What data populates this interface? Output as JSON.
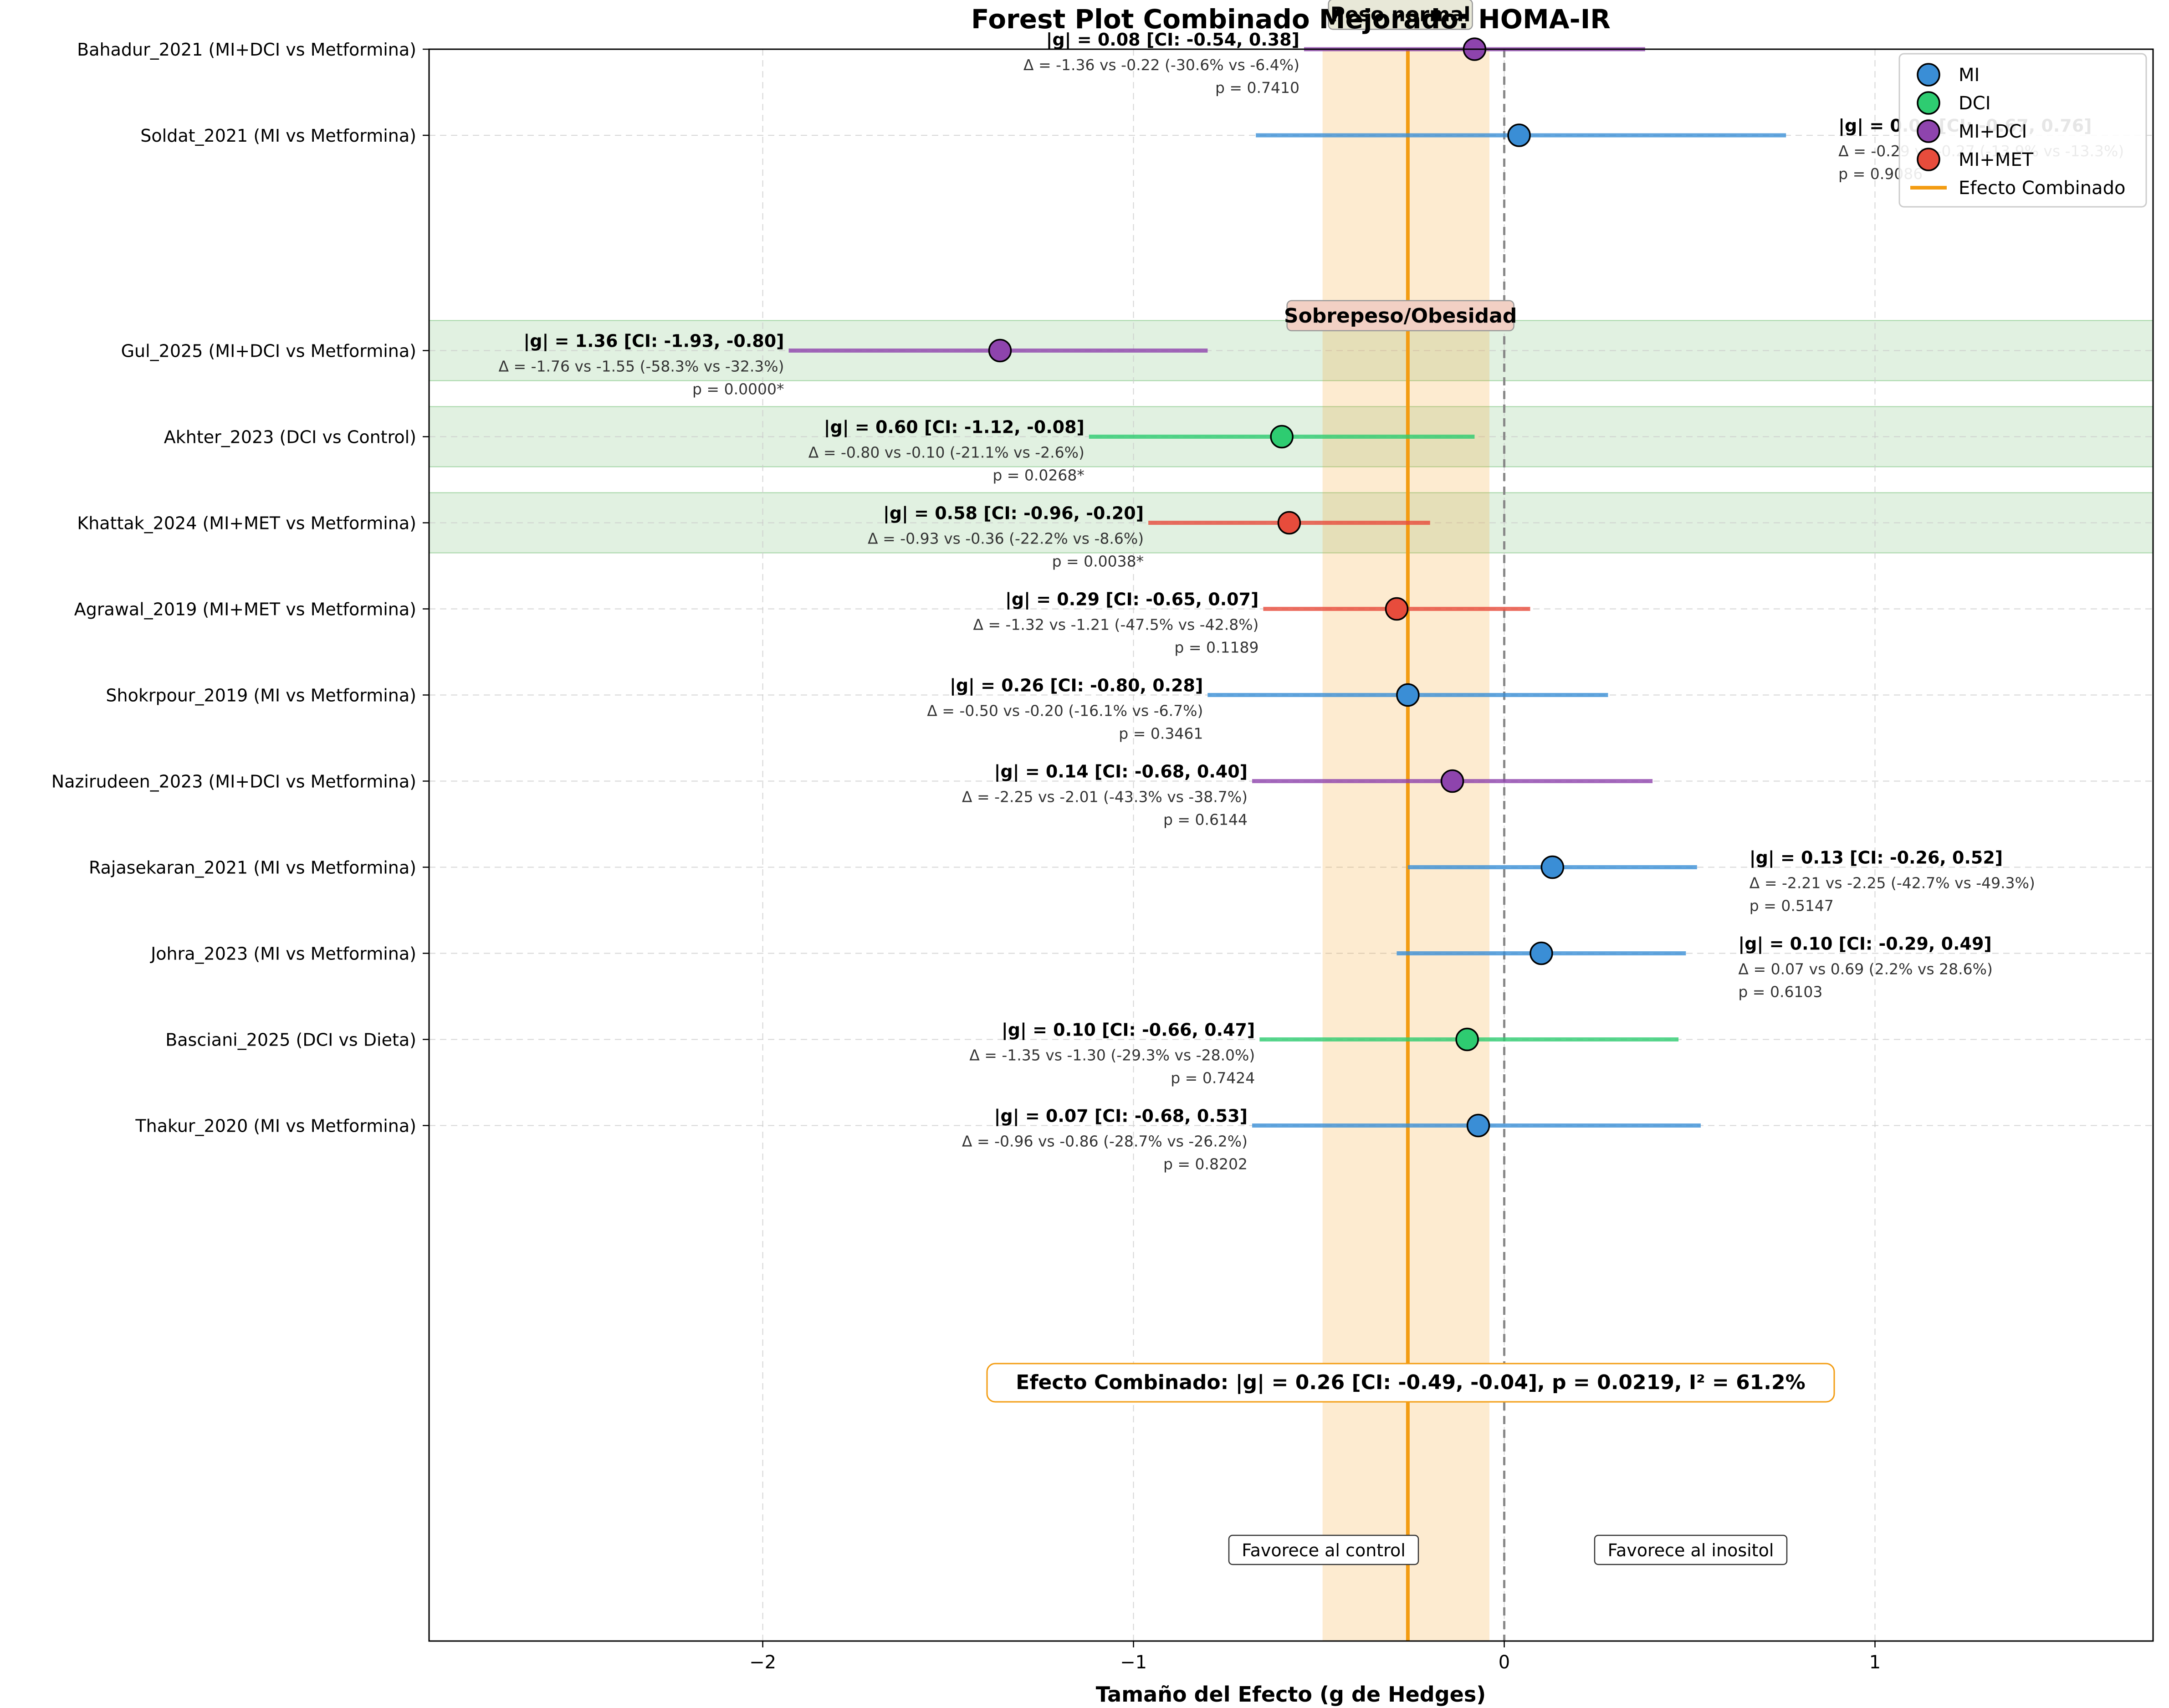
{
  "chart_data": {
    "type": "forest",
    "title": "Forest Plot Combinado Mejorado: HOMA-IR",
    "xlabel": "Tamaño del Efecto (g de Hedges)",
    "ylabel": "",
    "xlim": [
      -2.9,
      1.75
    ],
    "xticks": [
      -2,
      -1,
      0,
      1
    ],
    "xtick_labels": [
      "−2",
      "−1",
      "0",
      "1"
    ],
    "grid": true,
    "legend_position": "top-right",
    "legend": [
      {
        "label": "MI",
        "color": "#3a8ed6"
      },
      {
        "label": "DCI",
        "color": "#2ecc71"
      },
      {
        "label": "MI+DCI",
        "color": "#8e44ad"
      },
      {
        "label": "MI+MET",
        "color": "#e74c3c"
      },
      {
        "label": "Efecto Combinado",
        "color": "#f39c12"
      }
    ],
    "groups": [
      {
        "label": "Peso normal",
        "y": -1.4,
        "x": -0.28
      },
      {
        "label": "Sobrepeso/Obesidad",
        "y": 2.1,
        "x": -0.28
      }
    ],
    "studies": [
      {
        "label": "Bahadur_2021 (MI+DCI vs Metformina)",
        "y": -1,
        "group": "MI+DCI",
        "g": -0.08,
        "ci": [
          -0.54,
          0.38
        ],
        "abs_label": "|g| = 0.08 [CI: -0.54, 0.38]",
        "delta": "Δ = -1.36 vs -0.22 (-30.6% vs -6.4%)",
        "p": "p = 0.7410",
        "text_side": "left",
        "sig": false
      },
      {
        "label": "Soldat_2021 (MI vs Metformina)",
        "y": 0,
        "group": "MI",
        "g": 0.04,
        "ci": [
          -0.67,
          0.76
        ],
        "abs_label": "|g| = 0.04 [CI: -0.67, 0.76]",
        "delta": "Δ = -0.29 vs -0.27 (-13.9% vs -13.3%)",
        "p": "p = 0.9086",
        "text_side": "right",
        "sig": false
      },
      {
        "label": "Gul_2025 (MI+DCI vs Metformina)",
        "y": 2.5,
        "group": "MI+DCI",
        "g": -1.36,
        "ci": [
          -1.93,
          -0.8
        ],
        "abs_label": "|g| = 1.36 [CI: -1.93, -0.80]",
        "delta": "Δ = -1.76 vs -1.55 (-58.3% vs -32.3%)",
        "p": "p = 0.0000*",
        "text_side": "left",
        "sig": true
      },
      {
        "label": "Akhter_2023 (DCI vs Control)",
        "y": 3.5,
        "group": "DCI",
        "g": -0.6,
        "ci": [
          -1.12,
          -0.08
        ],
        "abs_label": "|g| = 0.60 [CI: -1.12, -0.08]",
        "delta": "Δ = -0.80 vs -0.10 (-21.1% vs -2.6%)",
        "p": "p = 0.0268*",
        "text_side": "left",
        "sig": true
      },
      {
        "label": "Khattak_2024 (MI+MET vs Metformina)",
        "y": 4.5,
        "group": "MI+MET",
        "g": -0.58,
        "ci": [
          -0.96,
          -0.2
        ],
        "abs_label": "|g| = 0.58 [CI: -0.96, -0.20]",
        "delta": "Δ = -0.93 vs -0.36 (-22.2% vs -8.6%)",
        "p": "p = 0.0038*",
        "text_side": "left",
        "sig": true
      },
      {
        "label": "Agrawal_2019 (MI+MET vs Metformina)",
        "y": 5.5,
        "group": "MI+MET",
        "g": -0.29,
        "ci": [
          -0.65,
          0.07
        ],
        "abs_label": "|g| = 0.29 [CI: -0.65, 0.07]",
        "delta": "Δ = -1.32 vs -1.21 (-47.5% vs -42.8%)",
        "p": "p = 0.1189",
        "text_side": "left",
        "sig": false
      },
      {
        "label": "Shokrpour_2019 (MI vs Metformina)",
        "y": 6.5,
        "group": "MI",
        "g": -0.26,
        "ci": [
          -0.8,
          0.28
        ],
        "abs_label": "|g| = 0.26 [CI: -0.80, 0.28]",
        "delta": "Δ = -0.50 vs -0.20 (-16.1% vs -6.7%)",
        "p": "p = 0.3461",
        "text_side": "left",
        "sig": false
      },
      {
        "label": "Nazirudeen_2023 (MI+DCI vs Metformina)",
        "y": 7.5,
        "group": "MI+DCI",
        "g": -0.14,
        "ci": [
          -0.68,
          0.4
        ],
        "abs_label": "|g| = 0.14 [CI: -0.68, 0.40]",
        "delta": "Δ = -2.25 vs -2.01 (-43.3% vs -38.7%)",
        "p": "p = 0.6144",
        "text_side": "left",
        "sig": false
      },
      {
        "label": "Rajasekaran_2021 (MI vs Metformina)",
        "y": 8.5,
        "group": "MI",
        "g": 0.13,
        "ci": [
          -0.26,
          0.52
        ],
        "abs_label": "|g| = 0.13 [CI: -0.26, 0.52]",
        "delta": "Δ = -2.21 vs -2.25 (-42.7% vs -49.3%)",
        "p": "p = 0.5147",
        "text_side": "right",
        "sig": false
      },
      {
        "label": "Johra_2023 (MI vs Metformina)",
        "y": 9.5,
        "group": "MI",
        "g": 0.1,
        "ci": [
          -0.29,
          0.49
        ],
        "abs_label": "|g| = 0.10 [CI: -0.29, 0.49]",
        "delta": "Δ = 0.07 vs 0.69 (2.2% vs 28.6%)",
        "p": "p = 0.6103",
        "text_side": "right",
        "sig": false
      },
      {
        "label": "Basciani_2025 (DCI vs Dieta)",
        "y": 10.5,
        "group": "DCI",
        "g": -0.1,
        "ci": [
          -0.66,
          0.47
        ],
        "abs_label": "|g| = 0.10 [CI: -0.66, 0.47]",
        "delta": "Δ = -1.35 vs -1.30 (-29.3% vs -28.0%)",
        "p": "p = 0.7424",
        "text_side": "left",
        "sig": false
      },
      {
        "label": "Thakur_2020 (MI vs Metformina)",
        "y": 11.5,
        "group": "MI",
        "g": -0.07,
        "ci": [
          -0.68,
          0.53
        ],
        "abs_label": "|g| = 0.07 [CI: -0.68, 0.53]",
        "delta": "Δ = -0.96 vs -0.86 (-28.7% vs -26.2%)",
        "p": "p = 0.8202",
        "text_side": "left",
        "sig": false
      }
    ],
    "combined": {
      "g": -0.26,
      "ci": [
        -0.49,
        -0.04
      ],
      "p": 0.0219,
      "i2": 61.2
    },
    "combined_label": "Efecto Combinado: |g| = 0.26 [CI: -0.49, -0.04], p = 0.0219, I² = 61.2%",
    "favors_left": "Favorece al control",
    "favors_right": "Favorece al inositol",
    "colors": {
      "MI": "#3a8ed6",
      "DCI": "#2ecc71",
      "MI+DCI": "#8e44ad",
      "MI+MET": "#e74c3c",
      "combined": "#f39c12",
      "significant_band": "#c8e6c9"
    }
  }
}
